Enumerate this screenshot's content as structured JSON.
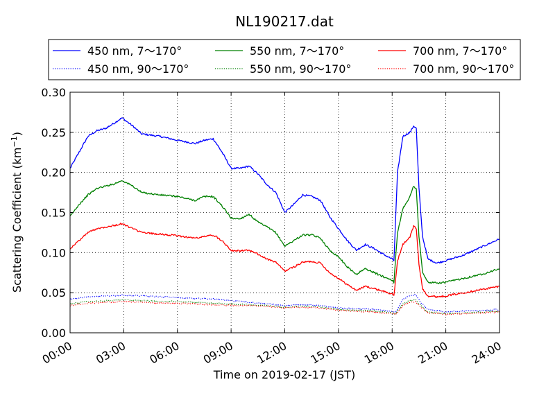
{
  "chart_data": {
    "type": "line",
    "title": "NL190217.dat",
    "xlabel": "Time on 2019-02-17 (JST)",
    "ylabel": "Scattering Coefficient (km",
    "ylabel_sup": "−1",
    "ylabel_close": ")",
    "xlim": [
      "00:00",
      "24:00"
    ],
    "ylim": [
      0.0,
      0.3
    ],
    "xticks": [
      "00:00",
      "03:00",
      "06:00",
      "09:00",
      "12:00",
      "15:00",
      "18:00",
      "21:00",
      "24:00"
    ],
    "yticks": [
      "0.00",
      "0.05",
      "0.10",
      "0.15",
      "0.20",
      "0.25",
      "0.30"
    ],
    "grid": true,
    "legend_position": "top",
    "series": [
      {
        "name": "450 nm, 7～170°",
        "color": "#0000ff",
        "style": "solid",
        "x": [
          0,
          0.5,
          1,
          1.5,
          2,
          2.5,
          2.9,
          3.5,
          4,
          5,
          6,
          7,
          7.5,
          8,
          8.5,
          9,
          9.5,
          10,
          10.5,
          11,
          11.5,
          12,
          12.5,
          13,
          13.5,
          14,
          14.5,
          15,
          15.5,
          16,
          16.5,
          17,
          17.5,
          18,
          18.1,
          18.3,
          18.6,
          19,
          19.2,
          19.35,
          19.5,
          19.7,
          20,
          20.5,
          21,
          22,
          23,
          24
        ],
        "y": [
          0.205,
          0.225,
          0.245,
          0.252,
          0.255,
          0.262,
          0.268,
          0.258,
          0.248,
          0.245,
          0.24,
          0.236,
          0.24,
          0.242,
          0.225,
          0.205,
          0.205,
          0.208,
          0.198,
          0.185,
          0.175,
          0.15,
          0.16,
          0.172,
          0.17,
          0.165,
          0.145,
          0.13,
          0.115,
          0.103,
          0.11,
          0.105,
          0.098,
          0.092,
          0.09,
          0.2,
          0.245,
          0.25,
          0.258,
          0.255,
          0.18,
          0.12,
          0.092,
          0.087,
          0.09,
          0.097,
          0.107,
          0.117
        ]
      },
      {
        "name": "550 nm, 7～170°",
        "color": "#008000",
        "style": "solid",
        "x": [
          0,
          0.5,
          1,
          1.5,
          2,
          2.5,
          2.9,
          3.5,
          4,
          5,
          6,
          7,
          7.5,
          8,
          8.5,
          9,
          9.5,
          10,
          10.5,
          11,
          11.5,
          12,
          12.5,
          13,
          13.5,
          14,
          14.5,
          15,
          15.5,
          16,
          16.5,
          17,
          17.5,
          18,
          18.1,
          18.3,
          18.6,
          19,
          19.2,
          19.35,
          19.5,
          19.7,
          20,
          20.5,
          21,
          22,
          23,
          24
        ],
        "y": [
          0.145,
          0.16,
          0.172,
          0.18,
          0.183,
          0.186,
          0.19,
          0.183,
          0.175,
          0.172,
          0.17,
          0.165,
          0.17,
          0.17,
          0.158,
          0.143,
          0.142,
          0.148,
          0.138,
          0.132,
          0.125,
          0.108,
          0.115,
          0.122,
          0.122,
          0.118,
          0.103,
          0.095,
          0.082,
          0.073,
          0.08,
          0.075,
          0.07,
          0.066,
          0.063,
          0.125,
          0.155,
          0.17,
          0.183,
          0.18,
          0.12,
          0.075,
          0.063,
          0.062,
          0.063,
          0.068,
          0.073,
          0.08
        ]
      },
      {
        "name": "700 nm, 7～170°",
        "color": "#ff0000",
        "style": "solid",
        "x": [
          0,
          0.5,
          1,
          1.5,
          2,
          2.5,
          2.9,
          3.5,
          4,
          5,
          6,
          7,
          7.5,
          8,
          8.5,
          9,
          9.5,
          10,
          10.5,
          11,
          11.5,
          12,
          12.5,
          13,
          13.5,
          14,
          14.5,
          15,
          15.5,
          16,
          16.5,
          17,
          17.5,
          18,
          18.1,
          18.3,
          18.6,
          19,
          19.2,
          19.35,
          19.5,
          19.7,
          20,
          20.5,
          21,
          22,
          23,
          24
        ],
        "y": [
          0.105,
          0.115,
          0.125,
          0.13,
          0.132,
          0.134,
          0.136,
          0.13,
          0.125,
          0.123,
          0.121,
          0.118,
          0.12,
          0.122,
          0.115,
          0.103,
          0.102,
          0.103,
          0.098,
          0.092,
          0.088,
          0.077,
          0.082,
          0.088,
          0.089,
          0.087,
          0.075,
          0.068,
          0.06,
          0.053,
          0.058,
          0.055,
          0.052,
          0.048,
          0.046,
          0.09,
          0.11,
          0.12,
          0.133,
          0.13,
          0.085,
          0.055,
          0.046,
          0.045,
          0.046,
          0.05,
          0.054,
          0.058
        ]
      },
      {
        "name": "450 nm, 90～170°",
        "color": "#0000ff",
        "style": "dotted",
        "x": [
          0,
          1,
          2,
          3,
          4,
          5,
          6,
          7,
          8,
          9,
          10,
          11,
          12,
          13,
          14,
          15,
          16,
          17,
          18,
          18.2,
          18.6,
          19,
          19.3,
          19.6,
          20,
          21,
          22,
          23,
          24
        ],
        "y": [
          0.042,
          0.045,
          0.046,
          0.047,
          0.046,
          0.045,
          0.044,
          0.043,
          0.042,
          0.04,
          0.038,
          0.036,
          0.034,
          0.035,
          0.034,
          0.031,
          0.03,
          0.029,
          0.027,
          0.026,
          0.042,
          0.046,
          0.048,
          0.038,
          0.029,
          0.026,
          0.027,
          0.028,
          0.029
        ]
      },
      {
        "name": "550 nm, 90～170°",
        "color": "#008000",
        "style": "dotted",
        "x": [
          0,
          1,
          2,
          3,
          4,
          5,
          6,
          7,
          8,
          9,
          10,
          11,
          12,
          13,
          14,
          15,
          16,
          17,
          18,
          18.2,
          18.6,
          19,
          19.3,
          19.6,
          20,
          21,
          22,
          23,
          24
        ],
        "y": [
          0.036,
          0.039,
          0.04,
          0.041,
          0.04,
          0.039,
          0.039,
          0.038,
          0.037,
          0.036,
          0.035,
          0.034,
          0.032,
          0.033,
          0.032,
          0.029,
          0.028,
          0.027,
          0.025,
          0.024,
          0.036,
          0.04,
          0.041,
          0.034,
          0.026,
          0.024,
          0.025,
          0.026,
          0.027
        ]
      },
      {
        "name": "700 nm, 90～170°",
        "color": "#ff0000",
        "style": "dotted",
        "x": [
          0,
          1,
          2,
          3,
          4,
          5,
          6,
          7,
          8,
          9,
          10,
          11,
          12,
          13,
          14,
          15,
          16,
          17,
          18,
          18.2,
          18.6,
          19,
          19.3,
          19.6,
          20,
          21,
          22,
          23,
          24
        ],
        "y": [
          0.034,
          0.037,
          0.038,
          0.039,
          0.038,
          0.037,
          0.037,
          0.036,
          0.035,
          0.034,
          0.034,
          0.033,
          0.031,
          0.032,
          0.031,
          0.028,
          0.027,
          0.026,
          0.024,
          0.023,
          0.034,
          0.038,
          0.039,
          0.032,
          0.025,
          0.023,
          0.024,
          0.025,
          0.026
        ]
      }
    ]
  }
}
